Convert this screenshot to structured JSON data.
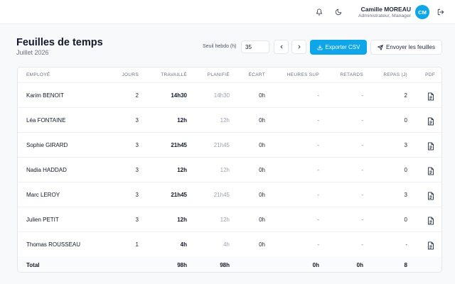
{
  "header": {
    "user_name": "Camille MOREAU",
    "user_role": "Administrateur, Manager",
    "avatar_initials": "CM",
    "icons": [
      "bell-icon",
      "moon-icon",
      "logout-icon"
    ],
    "accent_color": "#0ea5e9"
  },
  "page": {
    "title": "Feuilles de temps",
    "subtitle": "Juillet 2026"
  },
  "toolbar": {
    "seuil_label": "Seuil hebdo (h)",
    "seuil_value": "35",
    "export_label": "Exporter CSV",
    "send_label": "Envoyer les feuilles"
  },
  "table": {
    "columns": [
      "EMPLOYÉ",
      "JOURS",
      "TRAVAILLÉ",
      "PLANIFIÉ",
      "ÉCART",
      "HEURES SUP",
      "RETARDS",
      "REPAS (J)",
      "PDF"
    ],
    "rows": [
      {
        "name": "Karim BENOIT",
        "jours": "2",
        "travaille": "14h30",
        "planifie": "14h30",
        "ecart": "0h",
        "heures_sup": "-",
        "retards": "-",
        "repas": "2"
      },
      {
        "name": "Léa FONTAINE",
        "jours": "3",
        "travaille": "12h",
        "planifie": "12h",
        "ecart": "0h",
        "heures_sup": "-",
        "retards": "-",
        "repas": "0"
      },
      {
        "name": "Sophie GIRARD",
        "jours": "3",
        "travaille": "21h45",
        "planifie": "21h45",
        "ecart": "0h",
        "heures_sup": "-",
        "retards": "-",
        "repas": "3"
      },
      {
        "name": "Nadia HADDAD",
        "jours": "3",
        "travaille": "12h",
        "planifie": "12h",
        "ecart": "0h",
        "heures_sup": "-",
        "retards": "-",
        "repas": "0"
      },
      {
        "name": "Marc LEROY",
        "jours": "3",
        "travaille": "21h45",
        "planifie": "21h45",
        "ecart": "0h",
        "heures_sup": "-",
        "retards": "-",
        "repas": "3"
      },
      {
        "name": "Julien PETIT",
        "jours": "3",
        "travaille": "12h",
        "planifie": "12h",
        "ecart": "0h",
        "heures_sup": "-",
        "retards": "-",
        "repas": "0"
      },
      {
        "name": "Thomas ROUSSEAU",
        "jours": "1",
        "travaille": "4h",
        "planifie": "4h",
        "ecart": "0h",
        "heures_sup": "-",
        "retards": "-",
        "repas": "-"
      }
    ],
    "total": {
      "label": "Total",
      "travaille": "98h",
      "planifie": "98h",
      "heures_sup": "0h",
      "retards": "0h",
      "repas": "8"
    }
  }
}
